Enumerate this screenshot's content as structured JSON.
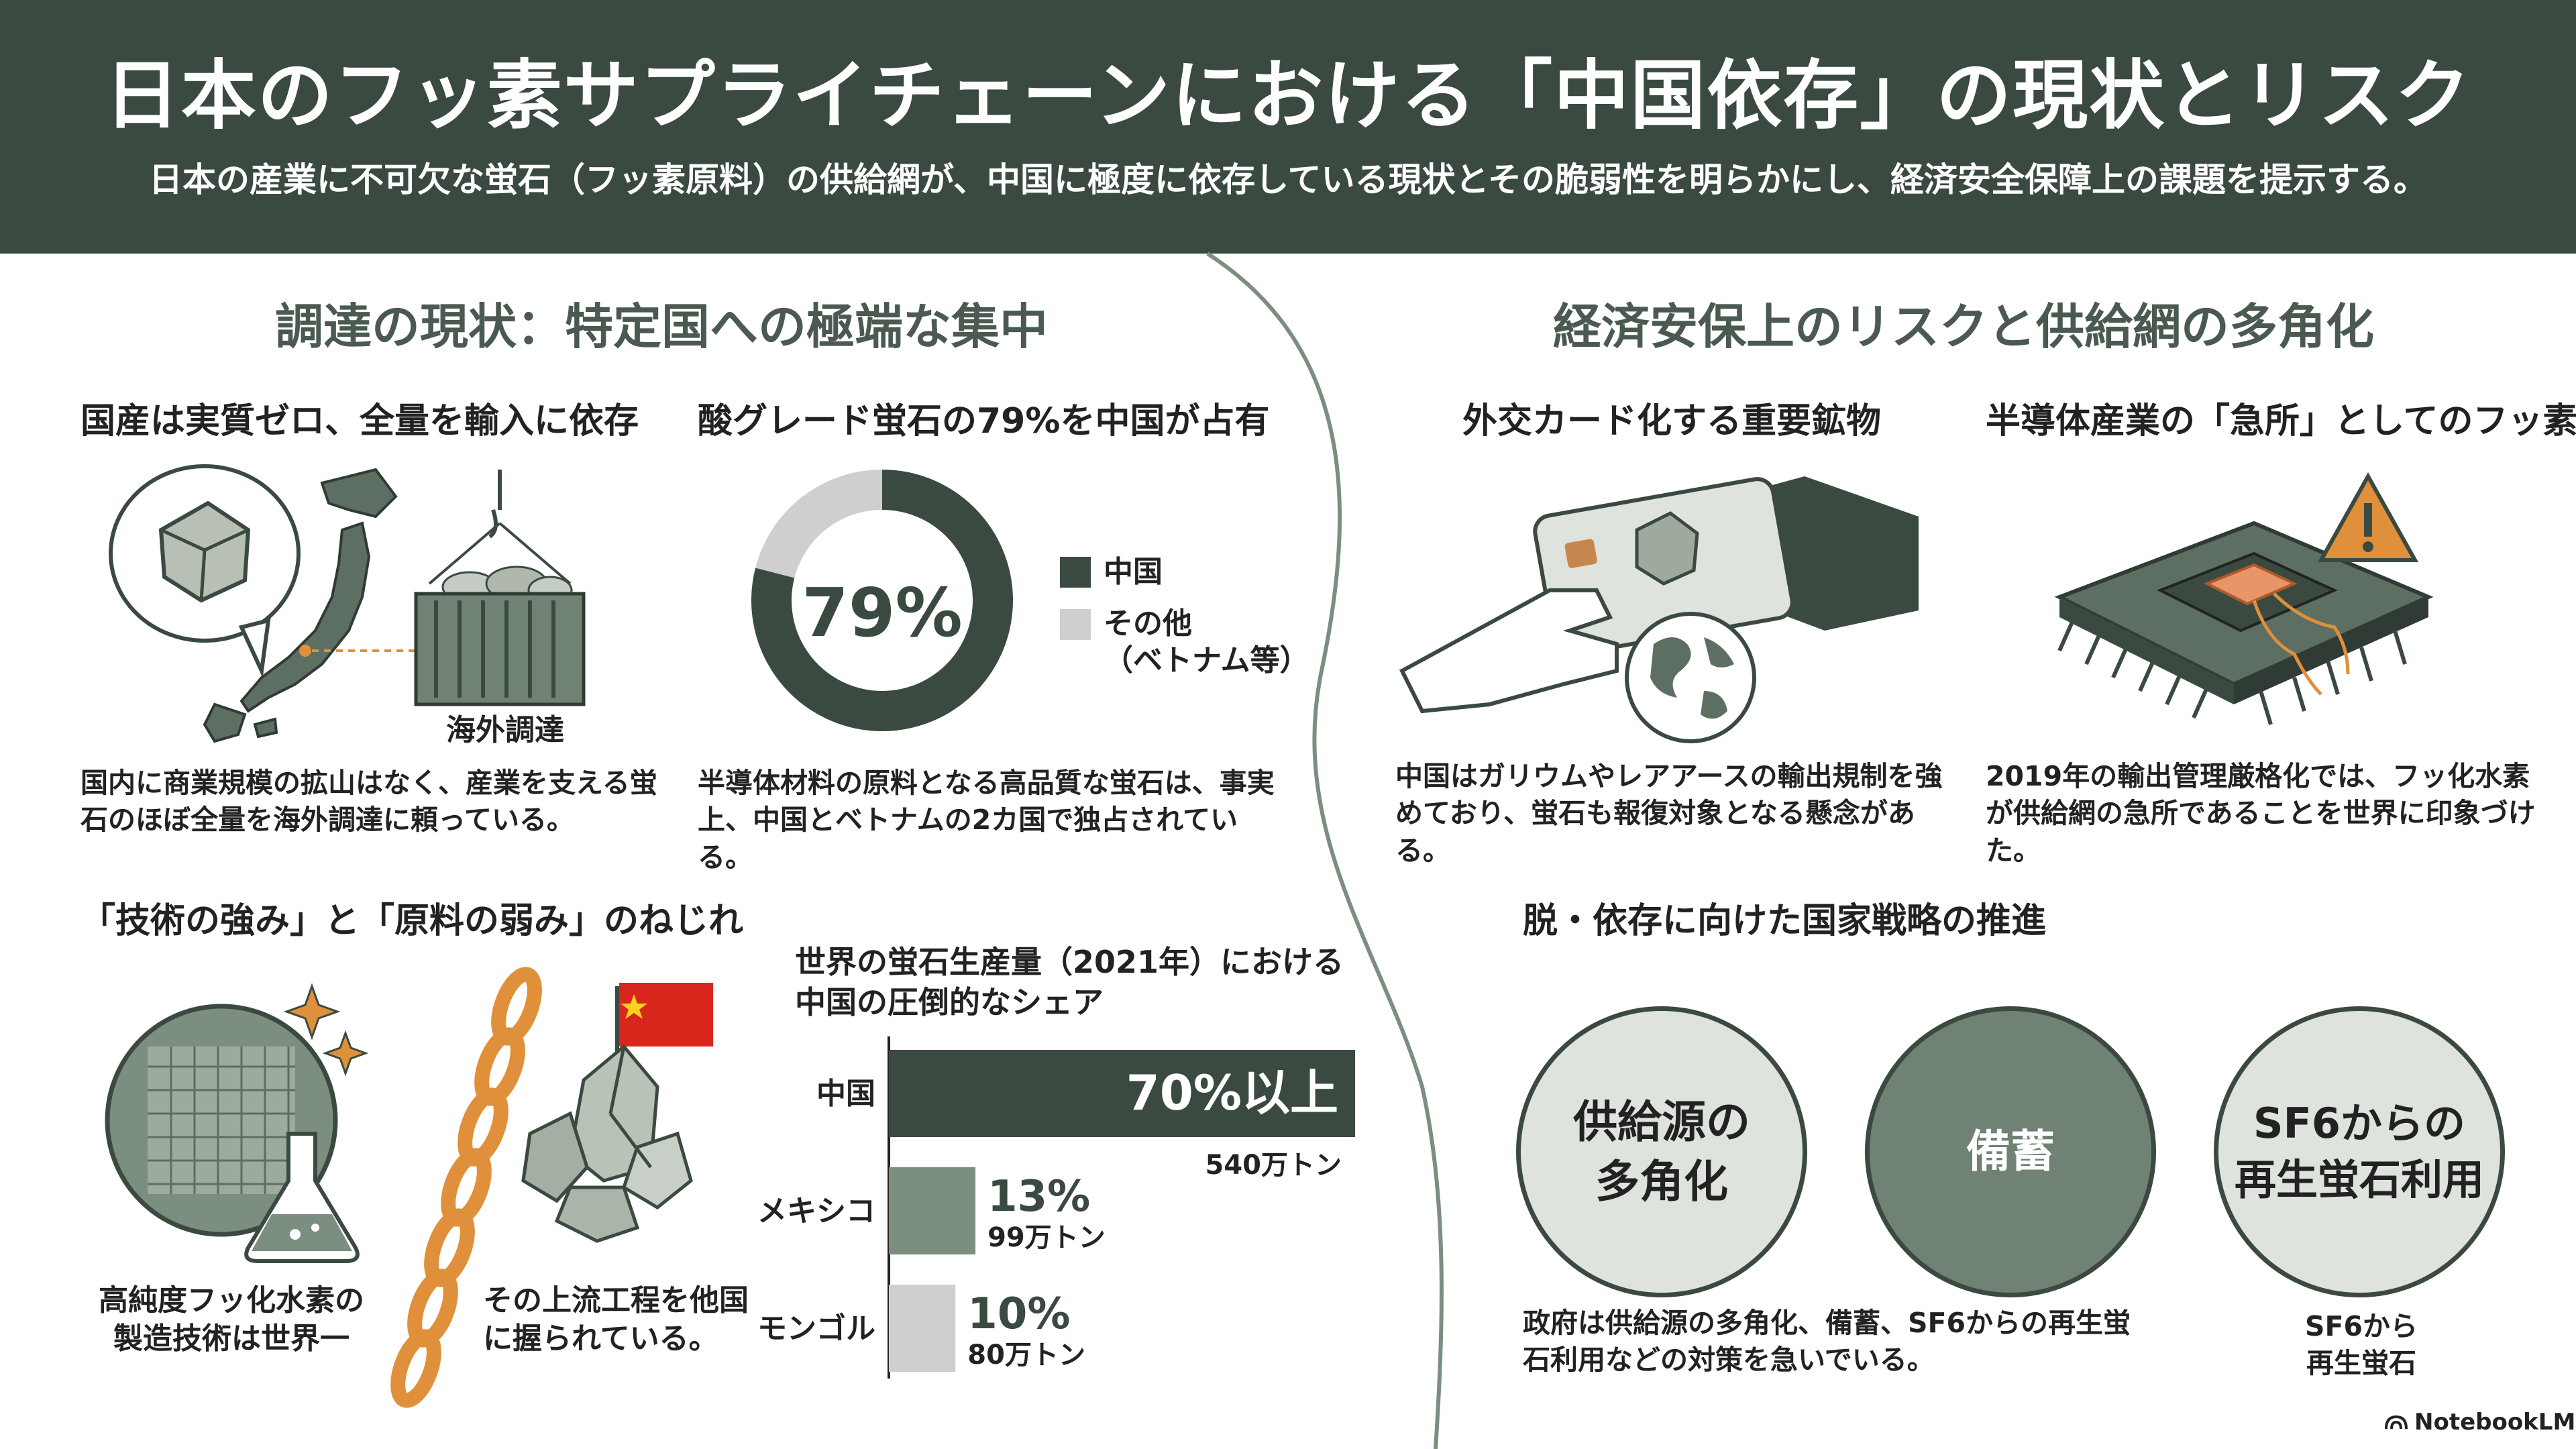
{
  "header": {
    "title": "日本のフッ素サプライチェーンにおける「中国依存」の現状とリスク",
    "subtitle": "日本の産業に不可欠な蛍石（フッ素原料）の供給網が、中国に極度に依存している現状とその脆弱性を明らかにし、経済安全保障上の課題を提示する。"
  },
  "left": {
    "section_title": "調達の現状：特定国への極端な集中",
    "domestic": {
      "heading": "国産は実質ゼロ、全量を輸入に依存",
      "container_label": "海外調達",
      "text": "国内に商業規模の拡山はなく、産業を支える蛍石のほぼ全量を海外調達に頼っている。"
    },
    "acid_grade": {
      "heading": "酸グレード蛍石の79%を中国が占有",
      "center_label": "79%",
      "text": "半導体材料の原料となる高品質な蛍石は、事実上、中国とベトナムの2カ国で独占されている。"
    },
    "twist": {
      "heading": "「技術の強み」と「原料の弱み」のねじれ",
      "tech_caption": "高純度フッ化水素の製造技術は世界一",
      "raw_caption": "その上流工程を他国に握られている。"
    }
  },
  "right": {
    "section_title": "経済安保上のリスクと供給網の多角化",
    "diplomatic": {
      "heading": "外交カード化する重要鉱物",
      "text": "中国はガリウムやレアアースの輸出規制を強めており、蛍石も報復対象となる懸念がある。"
    },
    "semiconductor": {
      "heading": "半導体産業の「急所」としてのフッ素",
      "text": "2019年の輸出管理厳格化では、フッ化水素が供給網の急所であることを世界に印象づけた。"
    },
    "strategy": {
      "heading": "脱・依存に向けた国家戦略の推進",
      "circles": [
        {
          "line1": "供給源の",
          "line2": "多角化"
        },
        {
          "line1": "備蓄",
          "line2": ""
        },
        {
          "line1": "SF6からの",
          "line2": "再生蛍石利用"
        }
      ],
      "text": "政府は供給源の多角化、備蓄、SF6からの再生蛍石利用などの対策を急いでいる。",
      "small_note": "SF6から再生蛍石"
    }
  },
  "footer": {
    "brand": "NotebookLM"
  },
  "colors": {
    "dark": "#3b4a41",
    "mid": "#7c8e7f",
    "light": "#cfcfcf",
    "orange": "#e0903a",
    "red": "#d9261c"
  },
  "chart_data": [
    {
      "type": "pie",
      "categories": [
        "中国",
        "その他（ベトナム等）"
      ],
      "values": [
        79,
        21
      ],
      "colors": [
        "#3b4a41",
        "#cfcfcf"
      ],
      "center_label": "79%",
      "legend": [
        {
          "label": "中国"
        },
        {
          "label": "その他",
          "label2": "（ベトナム等）"
        }
      ]
    },
    {
      "type": "bar",
      "title": "世界の蛍石生産量（2021年）における中国の圧倒的なシェア",
      "title_line1": "世界の蛍石生産量（2021年）における",
      "title_line2": "中国の圧倒的なシェア",
      "categories": [
        "中国",
        "メキシコ",
        "モンゴル"
      ],
      "values": [
        70,
        13,
        10
      ],
      "labels": [
        "70%以上",
        "13%",
        "10%"
      ],
      "sublabels": [
        "540万トン",
        "99万トン",
        "80万トン"
      ],
      "colors": [
        "#3b4a41",
        "#7c8e7f",
        "#cfcfcf"
      ],
      "xlim": [
        0,
        70
      ]
    }
  ]
}
